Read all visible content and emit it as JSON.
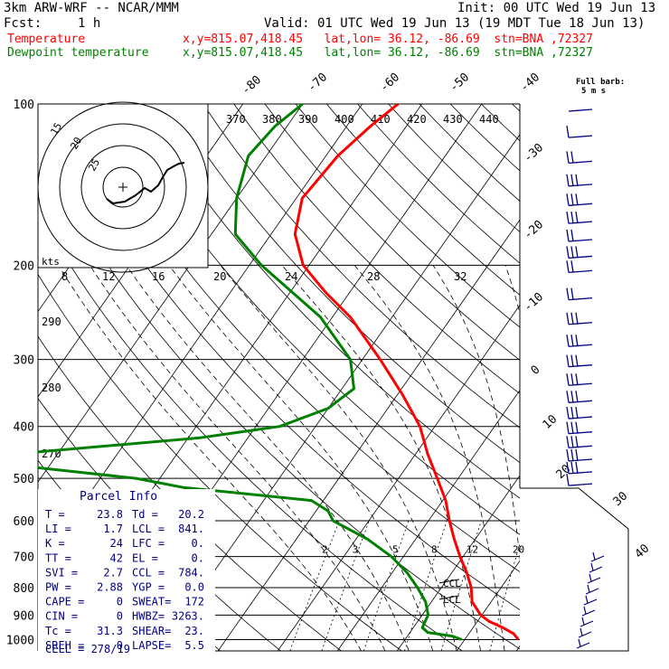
{
  "header": {
    "model": "3km ARW-WRF -- NCAR/MMM",
    "init": "Init: 00 UTC Wed 19 Jun 13",
    "fcst_label": "Fcst:",
    "fcst_value": "1 h",
    "valid": "Valid: 01 UTC Wed 19 Jun 13 (19 MDT Tue 18 Jun 13)",
    "temp_label": "Temperature",
    "temp_info": "x,y=815.07,418.45   lat,lon= 36.12, -86.69  stn=BNA ,72327",
    "dew_label": "Dewpoint temperature",
    "dew_info": "x,y=815.07,418.45   lat,lon= 36.12, -86.69  stn=BNA ,72327"
  },
  "colors": {
    "temperature": "#ff0000",
    "dewpoint": "#008000",
    "barbs": "#000080",
    "parcel_text": "#000080"
  },
  "chart_data": {
    "type": "line",
    "skew_t": true,
    "pressure_axis": {
      "scale": "log",
      "ticks": [
        100,
        200,
        300,
        400,
        500,
        600,
        700,
        800,
        900,
        1000
      ]
    },
    "isotherm_labels": [
      -80,
      -70,
      -60,
      -50,
      -40,
      -30,
      -20,
      -10,
      0,
      10,
      20,
      30,
      40
    ],
    "theta_labels": [
      370,
      380,
      390,
      400,
      410,
      420,
      430,
      440
    ],
    "dry_adiabat_labels": [
      290,
      280,
      270
    ],
    "mixing_ratio_labels": [
      2,
      3,
      5,
      8,
      12,
      20
    ],
    "hodograph": {
      "units": "kts",
      "axis_labels": [
        8,
        12,
        16,
        20,
        24,
        28,
        32
      ],
      "ring_labels": [
        15,
        20,
        25
      ],
      "trace": [
        [
          118,
          220
        ],
        [
          125,
          225
        ],
        [
          138,
          223
        ],
        [
          150,
          216
        ],
        [
          160,
          208
        ],
        [
          167,
          212
        ],
        [
          175,
          205
        ],
        [
          180,
          196
        ],
        [
          185,
          188
        ],
        [
          192,
          184
        ],
        [
          198,
          181
        ],
        [
          204,
          180
        ]
      ]
    },
    "wind_barb_header": [
      "Full barb:",
      "5 m s"
    ],
    "ccl_label": "CCL",
    "lcl_label": "LCL",
    "series": [
      {
        "name": "Temperature",
        "profile_units": "pressure hPa / temperature °C",
        "points": [
          [
            1000,
            29.0
          ],
          [
            975,
            27.5
          ],
          [
            950,
            25.0
          ],
          [
            925,
            22.0
          ],
          [
            900,
            19.8
          ],
          [
            850,
            16.8
          ],
          [
            800,
            15.0
          ],
          [
            750,
            12.5
          ],
          [
            700,
            9.5
          ],
          [
            650,
            6.5
          ],
          [
            600,
            3.5
          ],
          [
            550,
            0.5
          ],
          [
            500,
            -3.5
          ],
          [
            450,
            -8.0
          ],
          [
            400,
            -12.5
          ],
          [
            350,
            -19.0
          ],
          [
            300,
            -27.0
          ],
          [
            250,
            -37.0
          ],
          [
            225,
            -44.0
          ],
          [
            200,
            -51.0
          ],
          [
            175,
            -56.0
          ],
          [
            150,
            -59.0
          ],
          [
            125,
            -58.0
          ],
          [
            110,
            -56.0
          ],
          [
            100,
            -54.0
          ]
        ]
      },
      {
        "name": "Dewpoint temperature",
        "profile_units": "pressure hPa / temperature °C",
        "points": [
          [
            1000,
            19.5
          ],
          [
            985,
            17.5
          ],
          [
            970,
            13.0
          ],
          [
            950,
            11.5
          ],
          [
            900,
            11.0
          ],
          [
            850,
            9.0
          ],
          [
            800,
            6.0
          ],
          [
            750,
            2.5
          ],
          [
            700,
            -2.0
          ],
          [
            650,
            -8.0
          ],
          [
            600,
            -16.0
          ],
          [
            575,
            -18.0
          ],
          [
            550,
            -22.0
          ],
          [
            520,
            -45.0
          ],
          [
            500,
            -54.0
          ],
          [
            470,
            -78.0
          ],
          [
            450,
            -77.0
          ],
          [
            420,
            -48.0
          ],
          [
            400,
            -36.0
          ],
          [
            370,
            -30.0
          ],
          [
            340,
            -28.0
          ],
          [
            300,
            -32.0
          ],
          [
            250,
            -42.0
          ],
          [
            200,
            -58.0
          ],
          [
            175,
            -66.0
          ],
          [
            150,
            -70.0
          ],
          [
            125,
            -73.0
          ],
          [
            110,
            -72.0
          ],
          [
            100,
            -70.0
          ]
        ]
      }
    ],
    "wind_barbs": [
      {
        "p": 100,
        "n": 0
      },
      {
        "p": 112,
        "n": 1
      },
      {
        "p": 125,
        "n": 2
      },
      {
        "p": 138,
        "n": 3
      },
      {
        "p": 150,
        "n": 3
      },
      {
        "p": 162,
        "n": 3
      },
      {
        "p": 175,
        "n": 2
      },
      {
        "p": 188,
        "n": 3
      },
      {
        "p": 200,
        "n": 2
      },
      {
        "p": 225,
        "n": 2
      },
      {
        "p": 250,
        "n": 3
      },
      {
        "p": 275,
        "n": 3
      },
      {
        "p": 300,
        "n": 3
      },
      {
        "p": 325,
        "n": 3
      },
      {
        "p": 350,
        "n": 3
      },
      {
        "p": 375,
        "n": 3
      },
      {
        "p": 400,
        "n": 3
      },
      {
        "p": 425,
        "n": 3
      },
      {
        "p": 450,
        "n": 3
      },
      {
        "p": 475,
        "n": 3
      },
      {
        "p": 500,
        "n": 1
      }
    ]
  },
  "parcel": {
    "title": "Parcel Info",
    "rows": [
      [
        "T  =",
        "23.8",
        "Td =",
        "20.2"
      ],
      [
        "LI =",
        "1.7",
        "LCL =",
        "841."
      ],
      [
        "K  =",
        "24",
        "LFC =",
        "0."
      ],
      [
        "TT =",
        "42",
        "EL =",
        "0."
      ],
      [
        "SVI =",
        "2.7",
        "CCL =",
        "784."
      ],
      [
        "PW =",
        "2.88",
        "YGP =",
        "0.0"
      ],
      [
        "CAPE =",
        "0",
        "SWEAT=",
        "172"
      ],
      [
        "CIN =",
        "0",
        "HWBZ=",
        "3263."
      ],
      [
        "Tc =",
        "31.3",
        "SHEAR=",
        "23."
      ],
      [
        "SREH =",
        "0",
        "LAPSE=",
        "5.5"
      ]
    ],
    "cell": "CELL = 278/19"
  }
}
